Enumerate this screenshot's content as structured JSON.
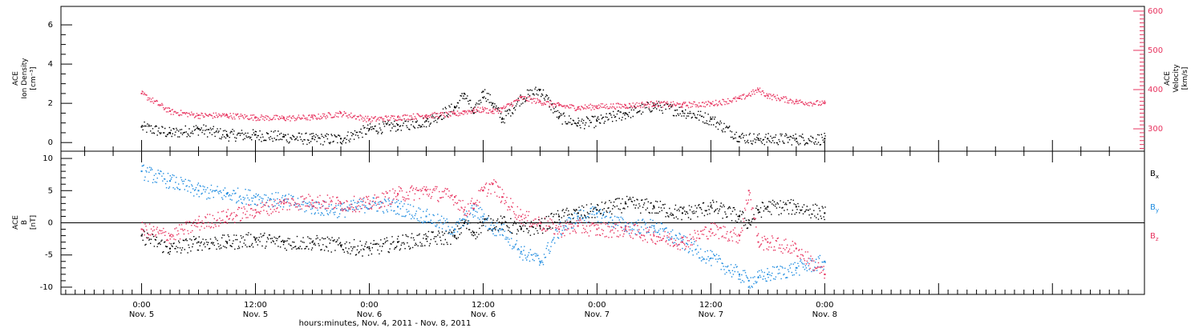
{
  "x_axis": {
    "label": "hours:minutes, Nov. 4, 2011 - Nov. 8, 2011",
    "range_hours": [
      -8.5,
      105.7
    ],
    "ticks": [
      {
        "hours": 0,
        "time": "0:00",
        "date": "Nov. 5"
      },
      {
        "hours": 12,
        "time": "12:00",
        "date": "Nov. 5"
      },
      {
        "hours": 24,
        "time": "0:00",
        "date": "Nov. 6"
      },
      {
        "hours": 36,
        "time": "12:00",
        "date": "Nov. 6"
      },
      {
        "hours": 48,
        "time": "0:00",
        "date": "Nov. 7"
      },
      {
        "hours": 60,
        "time": "12:00",
        "date": "Nov. 7"
      },
      {
        "hours": 72,
        "time": "0:00",
        "date": "Nov. 8"
      }
    ]
  },
  "colors": {
    "black": "#000000",
    "pink": "#e8335f",
    "blue": "#1f8ce0"
  },
  "chart_data": [
    {
      "type": "scatter",
      "panel": "top",
      "ylabel_left": [
        "ACE",
        "Ion Density",
        "[cm⁻³]"
      ],
      "ylabel_right": [
        "ACE",
        "Velocity",
        "[km/s]"
      ],
      "ylim_left": [
        -0.4,
        6.9
      ],
      "yticks_left": [
        0,
        2,
        4,
        6
      ],
      "ylim_right": [
        245,
        610
      ],
      "yticks_right": [
        300,
        400,
        500,
        600
      ],
      "x_hours": [
        0,
        3,
        6,
        9,
        12,
        15,
        18,
        21,
        24,
        27,
        30,
        33,
        34,
        35,
        36,
        37,
        38,
        40,
        42,
        44,
        46,
        48,
        51,
        54,
        57,
        60,
        63,
        65,
        66,
        69,
        72
      ],
      "series": [
        {
          "axis": "left",
          "color": "black",
          "values": [
            0.8,
            0.5,
            0.7,
            0.4,
            0.4,
            0.3,
            0.2,
            0.2,
            0.7,
            0.9,
            1.1,
            1.8,
            2.5,
            1.5,
            2.6,
            2.0,
            1.2,
            2.3,
            2.7,
            1.3,
            1.0,
            1.1,
            1.5,
            1.9,
            1.6,
            1.2,
            0.3,
            0.2,
            0.2,
            0.2,
            0.2
          ]
        },
        {
          "axis": "right",
          "color": "pink",
          "values": [
            390,
            345,
            335,
            335,
            330,
            328,
            330,
            340,
            325,
            330,
            335,
            338,
            345,
            348,
            350,
            345,
            352,
            380,
            370,
            360,
            355,
            358,
            360,
            365,
            362,
            365,
            378,
            400,
            385,
            370,
            365
          ]
        }
      ]
    },
    {
      "type": "scatter",
      "panel": "bottom",
      "ylabel_left": [
        "ACE",
        "B",
        "[nT]"
      ],
      "ylim": [
        -11,
        11
      ],
      "yticks": [
        -10,
        -5,
        0,
        5,
        10
      ],
      "series_labels": [
        "Bx",
        "By",
        "Bz"
      ],
      "x_hours": [
        0,
        3,
        6,
        9,
        12,
        15,
        18,
        21,
        24,
        27,
        30,
        33,
        34,
        35,
        36,
        37,
        38,
        40,
        42,
        44,
        46,
        48,
        51,
        54,
        57,
        60,
        63,
        64,
        65,
        66,
        69,
        72
      ],
      "series": [
        {
          "name": "Bx",
          "color": "black",
          "values": [
            -2,
            -4,
            -3,
            -3,
            -2.5,
            -3,
            -3,
            -3.5,
            -4,
            -3,
            -2.5,
            -2,
            0,
            -1.5,
            0,
            0,
            0,
            -1,
            -0.5,
            1,
            1.5,
            2,
            3,
            2.5,
            1.5,
            2.5,
            1,
            0,
            2,
            2.5,
            2.5,
            1.5
          ]
        },
        {
          "name": "By",
          "color": "blue",
          "values": [
            8,
            6.5,
            5,
            4.5,
            4,
            3.5,
            2.5,
            2,
            3,
            2.5,
            1,
            -1,
            0.5,
            2,
            1,
            -1,
            -1,
            -4.5,
            -6,
            -1,
            1,
            1.5,
            -0.5,
            -0.5,
            -3,
            -5.5,
            -8,
            -9,
            -8.5,
            -8,
            -7,
            -6
          ]
        },
        {
          "name": "Bz",
          "color": "pink",
          "values": [
            -1,
            -2,
            0,
            1,
            2,
            3,
            3.5,
            3,
            3,
            4.5,
            5,
            4,
            2,
            3,
            5,
            6,
            4,
            1,
            0,
            -1,
            -0.5,
            -1,
            -1,
            -2,
            -3,
            -1,
            -2,
            5,
            -3,
            -3,
            -4,
            -8
          ]
        }
      ]
    }
  ]
}
